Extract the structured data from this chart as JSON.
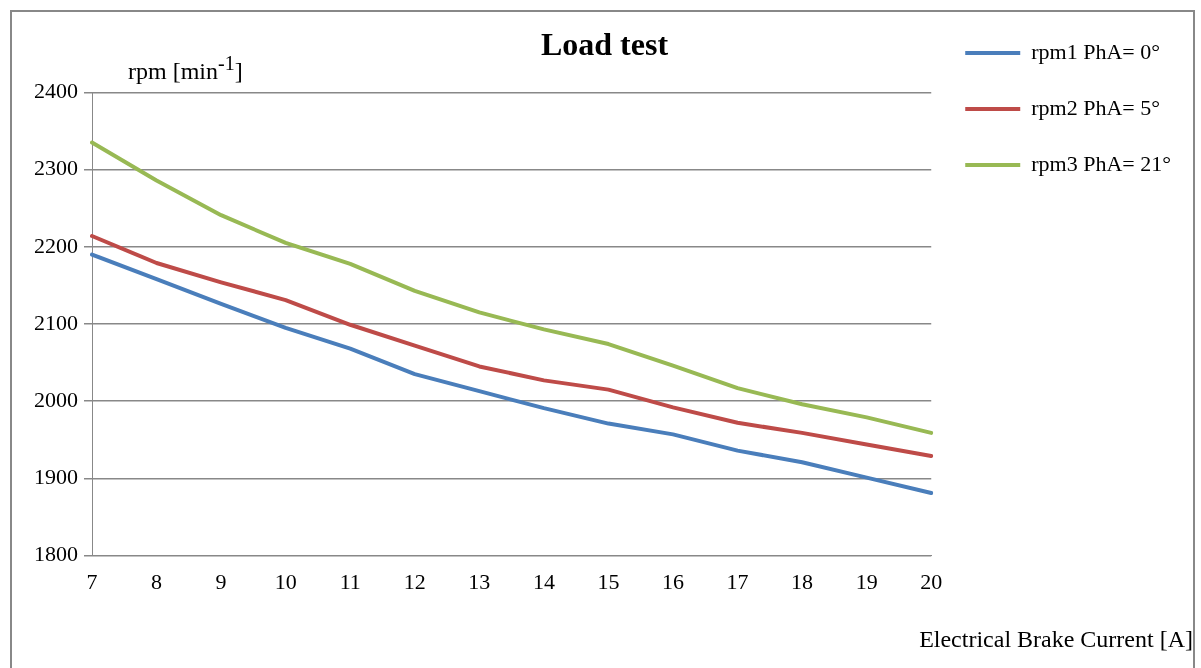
{
  "chart_data": {
    "type": "line",
    "title": "Load test",
    "ylabel": "rpm [min$^{-1}$]",
    "xlabel": "Electrical Brake Current [A]",
    "categories": [
      "7",
      "8",
      "9",
      "10",
      "11",
      "12",
      "13",
      "14",
      "15",
      "16",
      "17",
      "18",
      "19",
      "20"
    ],
    "series": [
      {
        "name": "rpm1 PhA= 0°",
        "color": "#4a7ebb",
        "values": [
          2190,
          2158,
          2126,
          2095,
          2068,
          2035,
          2013,
          1991,
          1971,
          1957,
          1936,
          1921,
          1901,
          1881
        ]
      },
      {
        "name": "rpm2 PhA= 5°",
        "color": "#be4b48",
        "values": [
          2214,
          2179,
          2154,
          2131,
          2099,
          2072,
          2045,
          2027,
          2015,
          1992,
          1972,
          1959,
          1944,
          1929
        ]
      },
      {
        "name": "rpm3 PhA= 21°",
        "color": "#98b954",
        "values": [
          2335,
          2286,
          2241,
          2205,
          2178,
          2143,
          2115,
          2093,
          2074,
          2046,
          2017,
          1996,
          1979,
          1959
        ]
      }
    ],
    "ylim": [
      1800,
      2400
    ],
    "yticks": [
      1800,
      1900,
      2000,
      2100,
      2200,
      2300,
      2400
    ],
    "grid": "y",
    "legend": "right",
    "marker": "none",
    "line_style": "solid"
  }
}
